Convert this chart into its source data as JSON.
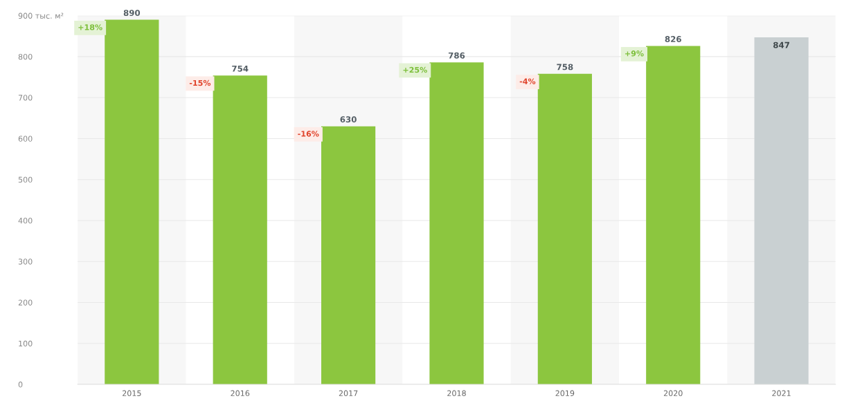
{
  "chart_data": {
    "type": "bar",
    "categories": [
      "2015",
      "2016",
      "2017",
      "2018",
      "2019",
      "2020",
      "2021"
    ],
    "values": [
      890,
      754,
      630,
      786,
      758,
      826,
      847
    ],
    "colors": [
      "#8cc63f",
      "#8cc63f",
      "#8cc63f",
      "#8cc63f",
      "#8cc63f",
      "#8cc63f",
      "#c9d0d2"
    ],
    "data_labels": true,
    "ylim": [
      0,
      900
    ],
    "yticks": [
      0,
      100,
      200,
      300,
      400,
      500,
      600,
      700,
      800,
      {
        "value": 900,
        "label": "900 тыс. м²"
      }
    ],
    "grid": "y",
    "bands": [
      {
        "axis": "x",
        "from": "2015",
        "to": "2015",
        "color": "#f7f7f7"
      },
      {
        "axis": "x",
        "from": "2017",
        "to": "2017",
        "color": "#f7f7f7"
      },
      {
        "axis": "x",
        "from": "2019",
        "to": "2019",
        "color": "#f7f7f7"
      },
      {
        "axis": "x",
        "from": "2021",
        "to": "2021",
        "color": "#f7f7f7"
      }
    ],
    "annotations": [
      "+18%",
      "-15%",
      "-16%",
      "+25%",
      "-4%",
      "+9%"
    ]
  }
}
